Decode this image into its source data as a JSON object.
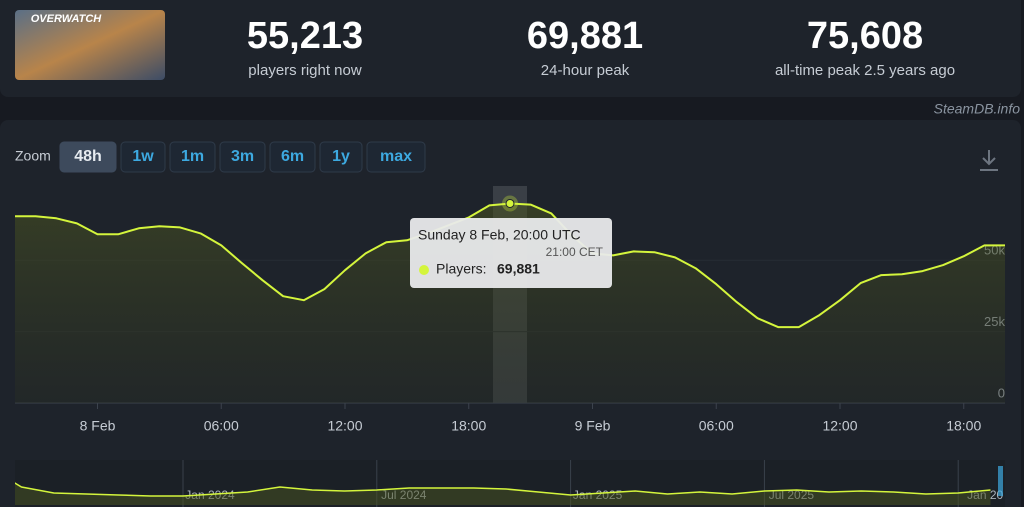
{
  "header": {
    "logo_text": "OVERWATCH",
    "stats": [
      {
        "value": "55,213",
        "label": "players right now"
      },
      {
        "value": "69,881",
        "label": "24-hour peak"
      },
      {
        "value": "75,608",
        "label": "all-time peak 2.5 years ago"
      }
    ],
    "watermark": "SteamDB.info"
  },
  "zoom": {
    "label": "Zoom",
    "options": [
      "48h",
      "1w",
      "1m",
      "3m",
      "6m",
      "1y",
      "max"
    ],
    "active": 0
  },
  "chart_data": [
    {
      "type": "line",
      "categories": [
        null,
        null,
        null,
        null,
        "8 Feb",
        null,
        null,
        null,
        null,
        null,
        "06:00",
        null,
        null,
        null,
        null,
        null,
        "12:00",
        null,
        null,
        null,
        null,
        null,
        "18:00",
        null,
        null,
        null,
        null,
        null,
        "9 Feb",
        null,
        null,
        null,
        null,
        null,
        "06:00",
        null,
        null,
        null,
        null,
        null,
        "12:00",
        null,
        null,
        null,
        null,
        null,
        "18:00",
        null,
        null
      ],
      "values": [
        65400,
        65400,
        64700,
        62900,
        59100,
        59100,
        61200,
        61900,
        61500,
        59400,
        55200,
        49000,
        43000,
        37400,
        36000,
        39900,
        46500,
        52400,
        56300,
        57000,
        59400,
        62200,
        65000,
        69200,
        69881,
        69500,
        66400,
        58700,
        52400,
        51700,
        53100,
        52800,
        51000,
        47200,
        41600,
        35300,
        29700,
        26600,
        26600,
        30800,
        36000,
        42000,
        44800,
        45100,
        46200,
        48300,
        51400,
        55200,
        55213
      ],
      "value_labels": [
        null,
        null,
        null,
        null,
        null,
        null,
        null,
        null,
        null,
        null,
        null,
        null,
        null,
        null,
        null,
        null,
        null,
        null,
        null,
        null,
        null,
        null,
        null,
        null,
        "69,881",
        null,
        null,
        null,
        null,
        null,
        null,
        null,
        null,
        null,
        null,
        null,
        null,
        null,
        null,
        null,
        null,
        null,
        null,
        null,
        null,
        null,
        null,
        null,
        null
      ],
      "tooltip": {
        "title": "Sunday 8 Feb, 20:00 UTC",
        "subtitle": "21:00 CET",
        "label": "Players:"
      },
      "color": "#d4f53c",
      "ylim": [
        0,
        76000
      ],
      "yticks": [
        0,
        {
          "value": 25000,
          "label": "25k"
        },
        {
          "value": 50000,
          "label": "50k"
        }
      ],
      "grid": true
    },
    {
      "type": "area",
      "categories": [
        null,
        null,
        null,
        null,
        null,
        null,
        "Jan 2024",
        null,
        null,
        null,
        null,
        null,
        "Jul 2024",
        null,
        null,
        null,
        null,
        null,
        "Jan 2025",
        null,
        null,
        null,
        null,
        null,
        "Jul 2025",
        null,
        null,
        null,
        null,
        null,
        "Jan 20",
        null
      ],
      "values": [
        74000,
        36000,
        24000,
        22000,
        20000,
        18000,
        18000,
        22000,
        26000,
        36000,
        30000,
        28000,
        30000,
        34000,
        34000,
        34000,
        32000,
        26000,
        20000,
        24000,
        28000,
        22000,
        26000,
        22000,
        28000,
        30000,
        26000,
        28000,
        26000,
        22000,
        24000,
        30000
      ],
      "color": "#d4f53c",
      "ylim": [
        0,
        84000
      ]
    }
  ]
}
